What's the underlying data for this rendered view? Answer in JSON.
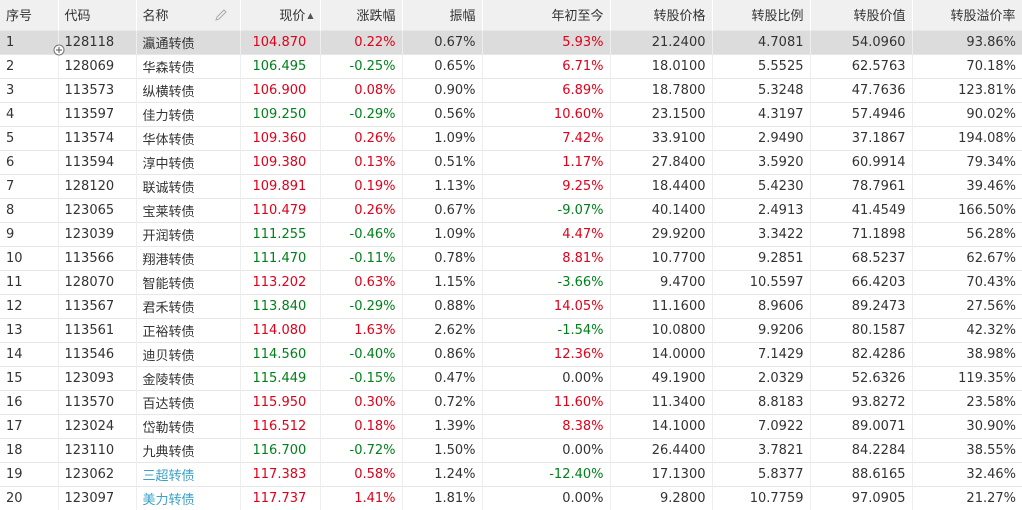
{
  "table": {
    "headers": {
      "index": "序号",
      "code": "代码",
      "name": "名称",
      "price": "现价",
      "change": "涨跌幅",
      "amplitude": "振幅",
      "ytd": "年初至今",
      "conv_price": "转股价格",
      "conv_ratio": "转股比例",
      "conv_value": "转股价值",
      "premium": "转股溢价率"
    },
    "sort": {
      "column": "price",
      "icon": "sort-asc-icon"
    },
    "colors": {
      "up": "#e0001a",
      "down": "#00801a",
      "link": "#3aa0c8",
      "header_bg": "#f0f0f0",
      "selected_bg": "#dcdcdc"
    },
    "rows": [
      {
        "idx": "1",
        "code": "128118",
        "name": "瀛通转债",
        "price": "104.870",
        "chg": "0.22%",
        "amp": "0.67%",
        "ytd": "5.93%",
        "cp": "21.2400",
        "cr": "4.7081",
        "cv": "54.0960",
        "prem": "93.86%",
        "price_color": "red",
        "chg_color": "red",
        "ytd_color": "red",
        "name_color": "",
        "selected": true
      },
      {
        "idx": "2",
        "code": "128069",
        "name": "华森转债",
        "price": "106.495",
        "chg": "-0.25%",
        "amp": "0.65%",
        "ytd": "6.71%",
        "cp": "18.0100",
        "cr": "5.5525",
        "cv": "62.5763",
        "prem": "70.18%",
        "price_color": "green",
        "chg_color": "green",
        "ytd_color": "red",
        "name_color": ""
      },
      {
        "idx": "3",
        "code": "113573",
        "name": "纵横转债",
        "price": "106.900",
        "chg": "0.08%",
        "amp": "0.90%",
        "ytd": "6.89%",
        "cp": "18.7800",
        "cr": "5.3248",
        "cv": "47.7636",
        "prem": "123.81%",
        "price_color": "red",
        "chg_color": "red",
        "ytd_color": "red",
        "name_color": ""
      },
      {
        "idx": "4",
        "code": "113597",
        "name": "佳力转债",
        "price": "109.250",
        "chg": "-0.29%",
        "amp": "0.56%",
        "ytd": "10.60%",
        "cp": "23.1500",
        "cr": "4.3197",
        "cv": "57.4946",
        "prem": "90.02%",
        "price_color": "green",
        "chg_color": "green",
        "ytd_color": "red",
        "name_color": ""
      },
      {
        "idx": "5",
        "code": "113574",
        "name": "华体转债",
        "price": "109.360",
        "chg": "0.26%",
        "amp": "1.09%",
        "ytd": "7.42%",
        "cp": "33.9100",
        "cr": "2.9490",
        "cv": "37.1867",
        "prem": "194.08%",
        "price_color": "red",
        "chg_color": "red",
        "ytd_color": "red",
        "name_color": ""
      },
      {
        "idx": "6",
        "code": "113594",
        "name": "淳中转债",
        "price": "109.380",
        "chg": "0.13%",
        "amp": "0.51%",
        "ytd": "1.17%",
        "cp": "27.8400",
        "cr": "3.5920",
        "cv": "60.9914",
        "prem": "79.34%",
        "price_color": "red",
        "chg_color": "red",
        "ytd_color": "red",
        "name_color": ""
      },
      {
        "idx": "7",
        "code": "128120",
        "name": "联诚转债",
        "price": "109.891",
        "chg": "0.19%",
        "amp": "1.13%",
        "ytd": "9.25%",
        "cp": "18.4400",
        "cr": "5.4230",
        "cv": "78.7961",
        "prem": "39.46%",
        "price_color": "red",
        "chg_color": "red",
        "ytd_color": "red",
        "name_color": ""
      },
      {
        "idx": "8",
        "code": "123065",
        "name": "宝莱转债",
        "price": "110.479",
        "chg": "0.26%",
        "amp": "0.67%",
        "ytd": "-9.07%",
        "cp": "40.1400",
        "cr": "2.4913",
        "cv": "41.4549",
        "prem": "166.50%",
        "price_color": "red",
        "chg_color": "red",
        "ytd_color": "green",
        "name_color": ""
      },
      {
        "idx": "9",
        "code": "123039",
        "name": "开润转债",
        "price": "111.255",
        "chg": "-0.46%",
        "amp": "1.09%",
        "ytd": "4.47%",
        "cp": "29.9200",
        "cr": "3.3422",
        "cv": "71.1898",
        "prem": "56.28%",
        "price_color": "green",
        "chg_color": "green",
        "ytd_color": "red",
        "name_color": ""
      },
      {
        "idx": "10",
        "code": "113566",
        "name": "翔港转债",
        "price": "111.470",
        "chg": "-0.11%",
        "amp": "0.78%",
        "ytd": "8.81%",
        "cp": "10.7700",
        "cr": "9.2851",
        "cv": "68.5237",
        "prem": "62.67%",
        "price_color": "green",
        "chg_color": "green",
        "ytd_color": "red",
        "name_color": ""
      },
      {
        "idx": "11",
        "code": "128070",
        "name": "智能转债",
        "price": "113.202",
        "chg": "0.63%",
        "amp": "1.15%",
        "ytd": "-3.66%",
        "cp": "9.4700",
        "cr": "10.5597",
        "cv": "66.4203",
        "prem": "70.43%",
        "price_color": "red",
        "chg_color": "red",
        "ytd_color": "green",
        "name_color": ""
      },
      {
        "idx": "12",
        "code": "113567",
        "name": "君禾转债",
        "price": "113.840",
        "chg": "-0.29%",
        "amp": "0.88%",
        "ytd": "14.05%",
        "cp": "11.1600",
        "cr": "8.9606",
        "cv": "89.2473",
        "prem": "27.56%",
        "price_color": "green",
        "chg_color": "green",
        "ytd_color": "red",
        "name_color": ""
      },
      {
        "idx": "13",
        "code": "113561",
        "name": "正裕转债",
        "price": "114.080",
        "chg": "1.63%",
        "amp": "2.62%",
        "ytd": "-1.54%",
        "cp": "10.0800",
        "cr": "9.9206",
        "cv": "80.1587",
        "prem": "42.32%",
        "price_color": "red",
        "chg_color": "red",
        "ytd_color": "green",
        "name_color": ""
      },
      {
        "idx": "14",
        "code": "113546",
        "name": "迪贝转债",
        "price": "114.560",
        "chg": "-0.40%",
        "amp": "0.86%",
        "ytd": "12.36%",
        "cp": "14.0000",
        "cr": "7.1429",
        "cv": "82.4286",
        "prem": "38.98%",
        "price_color": "green",
        "chg_color": "green",
        "ytd_color": "red",
        "name_color": ""
      },
      {
        "idx": "15",
        "code": "123093",
        "name": "金陵转债",
        "price": "115.449",
        "chg": "-0.15%",
        "amp": "0.47%",
        "ytd": "0.00%",
        "cp": "49.1900",
        "cr": "2.0329",
        "cv": "52.6326",
        "prem": "119.35%",
        "price_color": "green",
        "chg_color": "green",
        "ytd_color": "",
        "name_color": ""
      },
      {
        "idx": "16",
        "code": "113570",
        "name": "百达转债",
        "price": "115.950",
        "chg": "0.30%",
        "amp": "0.72%",
        "ytd": "11.60%",
        "cp": "11.3400",
        "cr": "8.8183",
        "cv": "93.8272",
        "prem": "23.58%",
        "price_color": "red",
        "chg_color": "red",
        "ytd_color": "red",
        "name_color": ""
      },
      {
        "idx": "17",
        "code": "123024",
        "name": "岱勒转债",
        "price": "116.512",
        "chg": "0.18%",
        "amp": "1.39%",
        "ytd": "8.38%",
        "cp": "14.1000",
        "cr": "7.0922",
        "cv": "89.0071",
        "prem": "30.90%",
        "price_color": "red",
        "chg_color": "red",
        "ytd_color": "red",
        "name_color": ""
      },
      {
        "idx": "18",
        "code": "123110",
        "name": "九典转债",
        "price": "116.700",
        "chg": "-0.72%",
        "amp": "1.50%",
        "ytd": "0.00%",
        "cp": "26.4400",
        "cr": "3.7821",
        "cv": "84.2284",
        "prem": "38.55%",
        "price_color": "green",
        "chg_color": "green",
        "ytd_color": "",
        "name_color": ""
      },
      {
        "idx": "19",
        "code": "123062",
        "name": "三超转债",
        "price": "117.383",
        "chg": "0.58%",
        "amp": "1.24%",
        "ytd": "-12.40%",
        "cp": "17.1300",
        "cr": "5.8377",
        "cv": "88.6165",
        "prem": "32.46%",
        "price_color": "red",
        "chg_color": "red",
        "ytd_color": "green",
        "name_color": "blue"
      },
      {
        "idx": "20",
        "code": "123097",
        "name": "美力转债",
        "price": "117.737",
        "chg": "1.41%",
        "amp": "1.81%",
        "ytd": "0.00%",
        "cp": "9.2800",
        "cr": "10.7759",
        "cv": "97.0905",
        "prem": "21.27%",
        "price_color": "red",
        "chg_color": "red",
        "ytd_color": "",
        "name_color": "blue"
      }
    ]
  }
}
